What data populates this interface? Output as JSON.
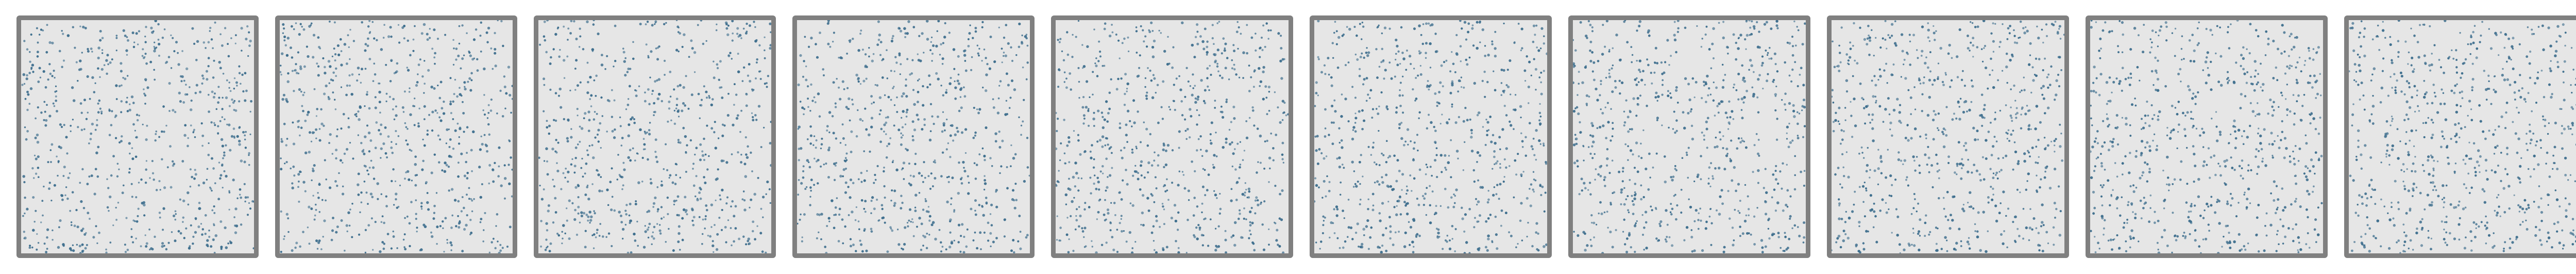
{
  "panels": [
    {
      "id": "panel-1"
    },
    {
      "id": "panel-2"
    },
    {
      "id": "panel-3"
    },
    {
      "id": "panel-4"
    },
    {
      "id": "panel-5"
    },
    {
      "id": "panel-6"
    },
    {
      "id": "panel-7"
    },
    {
      "id": "panel-8"
    },
    {
      "id": "panel-9"
    },
    {
      "id": "panel-10"
    }
  ],
  "colors": {
    "background": "#ffffff",
    "panel_fill": "#e6e6e6",
    "panel_border": "#808080",
    "dot": "#3f6f8e"
  },
  "dot_density": 700
}
